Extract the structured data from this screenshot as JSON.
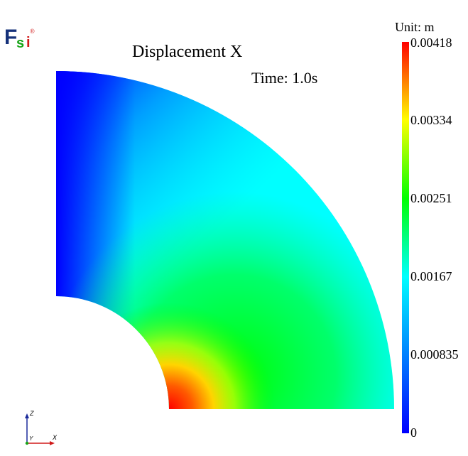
{
  "title": "Displacement X",
  "time_label": "Time: 1.0s",
  "unit_label": "Unit:   m",
  "colorbar": {
    "min": 0,
    "max": 0.00418,
    "ticks": [
      "0.00418",
      "0.00334",
      "0.00251",
      "0.00167",
      "0.000835",
      "0"
    ],
    "colors": [
      "#0000ff",
      "#00ffff",
      "#00ff00",
      "#ffff00",
      "#ff0000"
    ]
  },
  "logo": {
    "f": "F",
    "s": "s",
    "i": "i",
    "mark": "®"
  },
  "axes": {
    "x": "X",
    "y": "Y",
    "z": "Z"
  }
}
